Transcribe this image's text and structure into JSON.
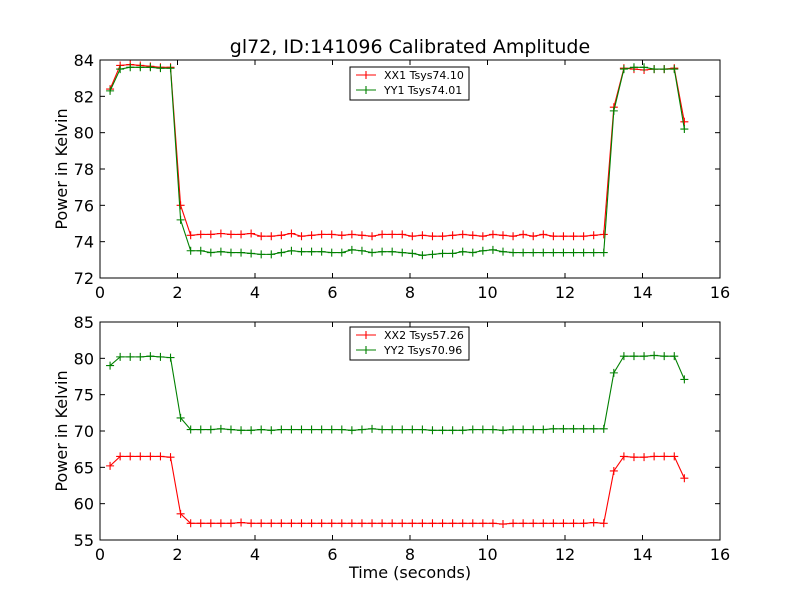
{
  "figure": {
    "title": "gl72, ID:141096 Calibrated Amplitude"
  },
  "chart_data": [
    {
      "type": "line",
      "title": "gl72, ID:141096 Calibrated Amplitude",
      "xlabel": "",
      "ylabel": "Power in Kelvin",
      "xlim": [
        0,
        16
      ],
      "ylim": [
        72,
        84
      ],
      "xticks": [
        0,
        2,
        4,
        6,
        8,
        10,
        12,
        14,
        16
      ],
      "yticks": [
        72,
        74,
        76,
        78,
        80,
        82,
        84
      ],
      "grid": false,
      "legend_position": "top-center",
      "x": [
        0.26,
        0.52,
        0.78,
        1.04,
        1.3,
        1.56,
        1.82,
        2.08,
        2.34,
        2.6,
        2.86,
        3.12,
        3.38,
        3.64,
        3.9,
        4.16,
        4.42,
        4.68,
        4.94,
        5.2,
        5.46,
        5.72,
        5.98,
        6.24,
        6.5,
        6.76,
        7.02,
        7.28,
        7.54,
        7.8,
        8.06,
        8.32,
        8.58,
        8.84,
        9.1,
        9.36,
        9.62,
        9.88,
        10.14,
        10.4,
        10.66,
        10.92,
        11.18,
        11.44,
        11.7,
        11.96,
        12.22,
        12.48,
        12.74,
        13.0,
        13.26,
        13.52,
        13.78,
        14.04,
        14.3,
        14.56,
        14.82,
        15.08
      ],
      "series": [
        {
          "name": "XX1 Tsys74.10",
          "color": "#ff0000",
          "values": [
            82.4,
            83.7,
            83.75,
            83.7,
            83.65,
            83.6,
            83.6,
            76.0,
            74.35,
            74.4,
            74.4,
            74.45,
            74.4,
            74.4,
            74.45,
            74.3,
            74.3,
            74.35,
            74.45,
            74.3,
            74.35,
            74.4,
            74.4,
            74.35,
            74.4,
            74.35,
            74.3,
            74.4,
            74.4,
            74.4,
            74.3,
            74.35,
            74.3,
            74.3,
            74.35,
            74.4,
            74.35,
            74.3,
            74.4,
            74.35,
            74.3,
            74.4,
            74.3,
            74.4,
            74.3,
            74.3,
            74.3,
            74.3,
            74.35,
            74.4,
            81.4,
            83.55,
            83.5,
            83.45,
            83.5,
            83.5,
            83.55,
            80.6
          ]
        },
        {
          "name": "YY1 Tsys74.01",
          "color": "#008000",
          "values": [
            82.3,
            83.5,
            83.6,
            83.6,
            83.6,
            83.55,
            83.55,
            75.2,
            73.5,
            73.5,
            73.4,
            73.45,
            73.4,
            73.4,
            73.35,
            73.3,
            73.3,
            73.4,
            73.5,
            73.45,
            73.45,
            73.45,
            73.4,
            73.4,
            73.55,
            73.5,
            73.4,
            73.45,
            73.45,
            73.4,
            73.35,
            73.25,
            73.3,
            73.35,
            73.35,
            73.45,
            73.4,
            73.5,
            73.55,
            73.45,
            73.4,
            73.4,
            73.4,
            73.4,
            73.4,
            73.4,
            73.4,
            73.4,
            73.4,
            73.4,
            81.2,
            83.5,
            83.6,
            83.6,
            83.5,
            83.5,
            83.5,
            80.2
          ]
        }
      ]
    },
    {
      "type": "line",
      "title": "",
      "xlabel": "Time (seconds)",
      "ylabel": "Power in Kelvin",
      "xlim": [
        0,
        16
      ],
      "ylim": [
        55,
        85
      ],
      "xticks": [
        0,
        2,
        4,
        6,
        8,
        10,
        12,
        14,
        16
      ],
      "yticks": [
        55,
        60,
        65,
        70,
        75,
        80,
        85
      ],
      "grid": false,
      "legend_position": "top-center",
      "x": [
        0.26,
        0.52,
        0.78,
        1.04,
        1.3,
        1.56,
        1.82,
        2.08,
        2.34,
        2.6,
        2.86,
        3.12,
        3.38,
        3.64,
        3.9,
        4.16,
        4.42,
        4.68,
        4.94,
        5.2,
        5.46,
        5.72,
        5.98,
        6.24,
        6.5,
        6.76,
        7.02,
        7.28,
        7.54,
        7.8,
        8.06,
        8.32,
        8.58,
        8.84,
        9.1,
        9.36,
        9.62,
        9.88,
        10.14,
        10.4,
        10.66,
        10.92,
        11.18,
        11.44,
        11.7,
        11.96,
        12.22,
        12.48,
        12.74,
        13.0,
        13.26,
        13.52,
        13.78,
        14.04,
        14.3,
        14.56,
        14.82,
        15.08
      ],
      "series": [
        {
          "name": "XX2 Tsys57.26",
          "color": "#ff0000",
          "values": [
            65.2,
            66.5,
            66.5,
            66.5,
            66.5,
            66.5,
            66.4,
            58.6,
            57.3,
            57.3,
            57.3,
            57.3,
            57.3,
            57.4,
            57.3,
            57.3,
            57.3,
            57.3,
            57.3,
            57.3,
            57.3,
            57.3,
            57.3,
            57.3,
            57.3,
            57.3,
            57.3,
            57.3,
            57.3,
            57.3,
            57.3,
            57.3,
            57.3,
            57.3,
            57.3,
            57.3,
            57.3,
            57.3,
            57.3,
            57.2,
            57.3,
            57.3,
            57.3,
            57.3,
            57.3,
            57.3,
            57.3,
            57.3,
            57.4,
            57.3,
            64.5,
            66.5,
            66.4,
            66.4,
            66.5,
            66.5,
            66.5,
            63.5
          ]
        },
        {
          "name": "YY2 Tsys70.96",
          "color": "#008000",
          "values": [
            79.0,
            80.2,
            80.2,
            80.2,
            80.3,
            80.2,
            80.1,
            71.8,
            70.2,
            70.2,
            70.2,
            70.3,
            70.2,
            70.1,
            70.1,
            70.2,
            70.1,
            70.2,
            70.2,
            70.2,
            70.2,
            70.2,
            70.2,
            70.2,
            70.1,
            70.2,
            70.3,
            70.2,
            70.2,
            70.2,
            70.2,
            70.2,
            70.1,
            70.1,
            70.1,
            70.1,
            70.2,
            70.2,
            70.2,
            70.1,
            70.2,
            70.2,
            70.2,
            70.2,
            70.3,
            70.3,
            70.3,
            70.3,
            70.3,
            70.3,
            78.0,
            80.3,
            80.3,
            80.3,
            80.4,
            80.3,
            80.3,
            77.1
          ]
        }
      ]
    }
  ]
}
